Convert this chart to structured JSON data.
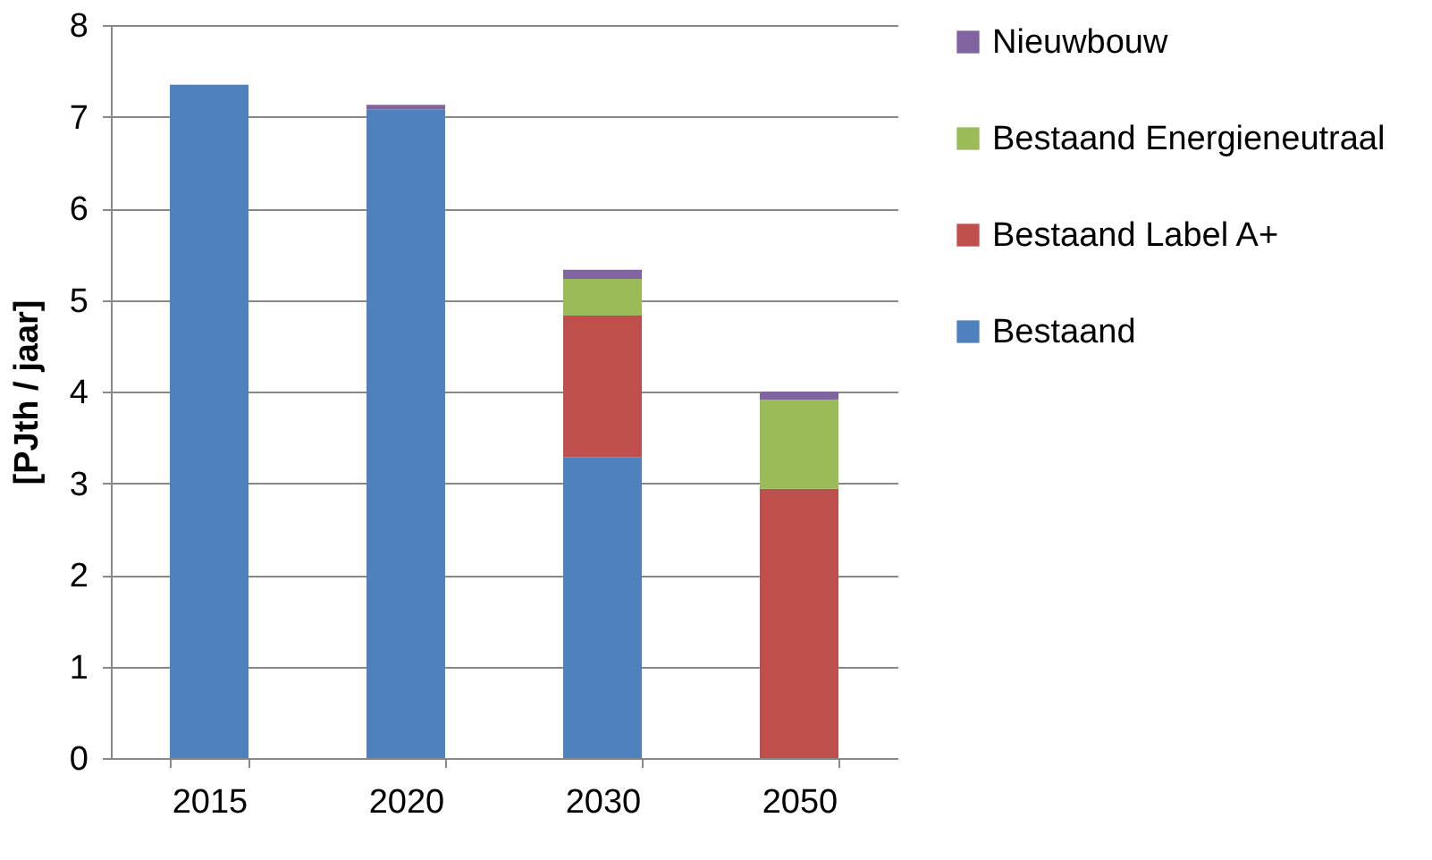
{
  "chart_data": {
    "type": "bar",
    "ylabel": "[PJth / jaar]",
    "categories": [
      "2015",
      "2020",
      "2030",
      "2050"
    ],
    "stacked": true,
    "series": [
      {
        "name": "Bestaand",
        "color": "#4f81bd",
        "values": [
          7.35,
          7.08,
          3.28,
          0
        ]
      },
      {
        "name": "Bestaand Label A+",
        "color": "#c0504d",
        "values": [
          0,
          0,
          1.55,
          2.94
        ]
      },
      {
        "name": "Bestaand Energieneutraal",
        "color": "#9bbb59",
        "values": [
          0,
          0,
          0.4,
          0.97
        ]
      },
      {
        "name": "Nieuwbouw",
        "color": "#8064a2",
        "values": [
          0,
          0.05,
          0.1,
          0.09
        ]
      }
    ],
    "ylim": [
      0,
      8
    ],
    "yticks": [
      0,
      1,
      2,
      3,
      4,
      5,
      6,
      7,
      8
    ],
    "grid": "y",
    "legend": "right"
  }
}
